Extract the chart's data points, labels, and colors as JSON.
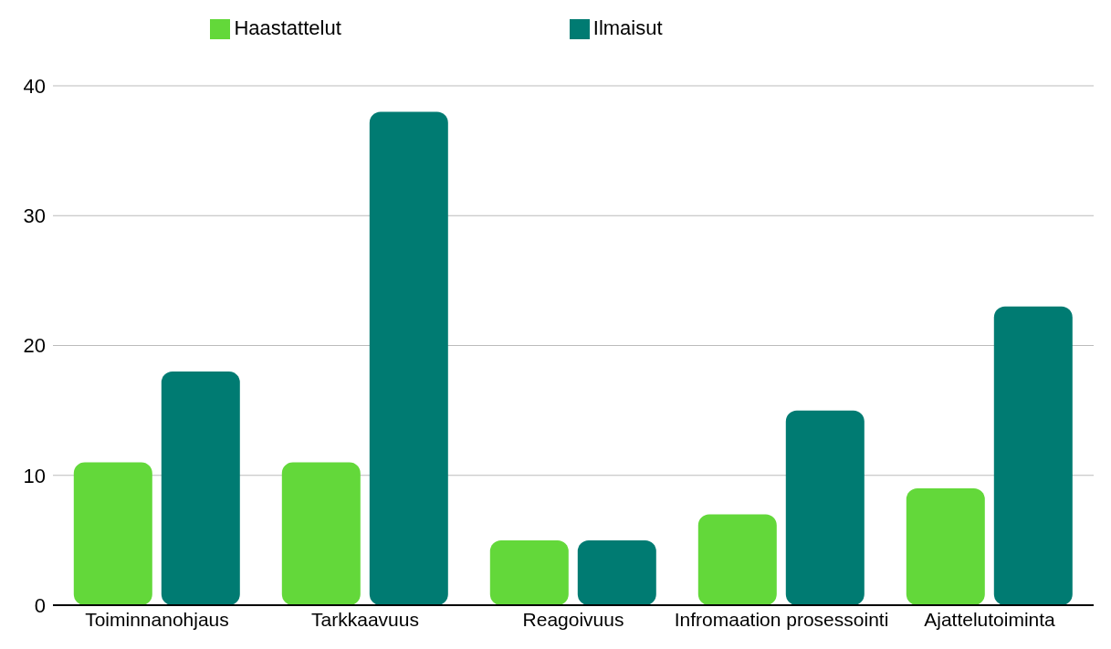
{
  "chart_data": {
    "type": "bar",
    "categories": [
      "Toiminnanohjaus",
      "Tarkkaavuus",
      "Reagoivuus",
      "Infromaation prosessointi",
      "Ajattelutoiminta"
    ],
    "series": [
      {
        "name": "Haastattelut",
        "color": "#63d83a",
        "values": [
          11,
          11,
          5,
          7,
          9
        ]
      },
      {
        "name": "Ilmaisut",
        "color": "#007b72",
        "values": [
          18,
          38,
          5,
          15,
          23
        ]
      }
    ],
    "ylim": [
      0,
      40
    ],
    "yticks": [
      0,
      10,
      20,
      30,
      40
    ],
    "grid": "y",
    "legend": "top"
  }
}
